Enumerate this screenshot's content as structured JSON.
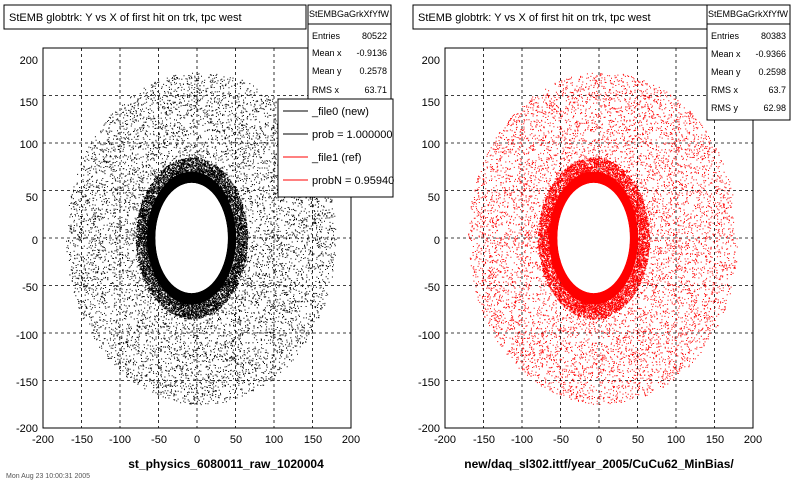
{
  "chart_data": [
    {
      "type": "scatter",
      "title": "StEMB globtrk: Y vs X of first hit on trk, tpc west",
      "xlabel": "st_physics_6080011_raw_1020004",
      "ylabel": "",
      "xlim": [
        -200,
        200
      ],
      "ylim": [
        -200,
        200
      ],
      "xticks": [
        "-200",
        "-150",
        "-100",
        "-50",
        "0",
        "50",
        "100",
        "150",
        "200"
      ],
      "yticks": [
        "200",
        "150",
        "100",
        "50",
        "0",
        "-50",
        "-100",
        "-150",
        "-200"
      ],
      "grid": true,
      "marker_color": "#000000",
      "stats": {
        "name": "StEMBGaGrkXfYfW",
        "rows": [
          {
            "label": "Entries",
            "value": "80522"
          },
          {
            "label": "Mean x",
            "value": "-0.9136"
          },
          {
            "label": "Mean y",
            "value": "0.2578"
          },
          {
            "label": "RMS x",
            "value": "63.71"
          }
        ]
      },
      "legend": {
        "placement": "right",
        "entries": [
          {
            "label": "_file0 (new)",
            "color": "#000000"
          },
          {
            "label": "prob = 1.000000",
            "color": "#000000"
          },
          {
            "label": "_file1 (ref)",
            "color": "#ff0000"
          },
          {
            "label": "probN = 0.95940",
            "color": "#ff0000"
          }
        ]
      },
      "distribution": {
        "inner_hole_x": [
          -60,
          45
        ],
        "inner_hole_y": [
          -60,
          60
        ],
        "outer_radius": 175
      }
    },
    {
      "type": "scatter",
      "title": "StEMB globtrk: Y vs X of first hit on trk, tpc west",
      "xlabel": "new/daq_sl302.ittf/year_2005/CuCu62_MinBias/",
      "ylabel": "",
      "xlim": [
        -200,
        200
      ],
      "ylim": [
        -200,
        200
      ],
      "xticks": [
        "-200",
        "-150",
        "-100",
        "-50",
        "0",
        "50",
        "100",
        "150",
        "200"
      ],
      "yticks": [
        "200",
        "150",
        "100",
        "50",
        "0",
        "-50",
        "-100",
        "-150",
        "-200"
      ],
      "grid": true,
      "marker_color": "#ff0000",
      "stats": {
        "name": "StEMBGaGrkXfYfW",
        "rows": [
          {
            "label": "Entries",
            "value": "80383"
          },
          {
            "label": "Mean x",
            "value": "-0.9366"
          },
          {
            "label": "Mean y",
            "value": "0.2598"
          },
          {
            "label": "RMS x",
            "value": "63.7"
          },
          {
            "label": "RMS y",
            "value": "62.98"
          }
        ]
      },
      "distribution": {
        "inner_hole_x": [
          -60,
          45
        ],
        "inner_hole_y": [
          -60,
          60
        ],
        "outer_radius": 175
      }
    }
  ],
  "footer_text": "Mon Aug 23 10:00:31 2005"
}
